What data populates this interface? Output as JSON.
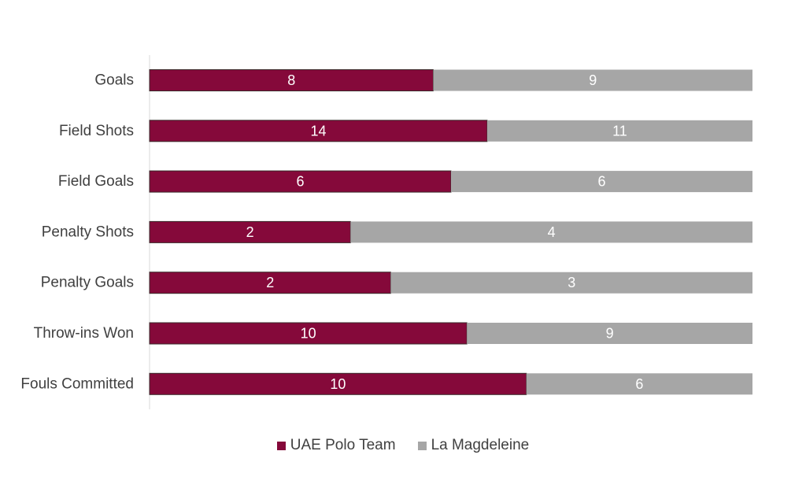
{
  "chart_data": {
    "type": "bar",
    "orientation": "horizontal",
    "stacked": "percent",
    "categories": [
      "Goals",
      "Field Shots",
      "Field Goals",
      "Penalty Shots",
      "Penalty Goals",
      "Throw-ins Won",
      "Fouls Committed"
    ],
    "series": [
      {
        "name": "UAE Polo Team",
        "values": [
          8,
          14,
          6,
          2,
          2,
          10,
          10
        ],
        "color": "#85093a"
      },
      {
        "name": "La Magdeleine",
        "values": [
          9,
          11,
          6,
          4,
          3,
          9,
          6
        ],
        "color": "#a6a6a6"
      }
    ],
    "title": "",
    "xlabel": "",
    "ylabel": "",
    "legend_position": "bottom",
    "grid": false
  }
}
